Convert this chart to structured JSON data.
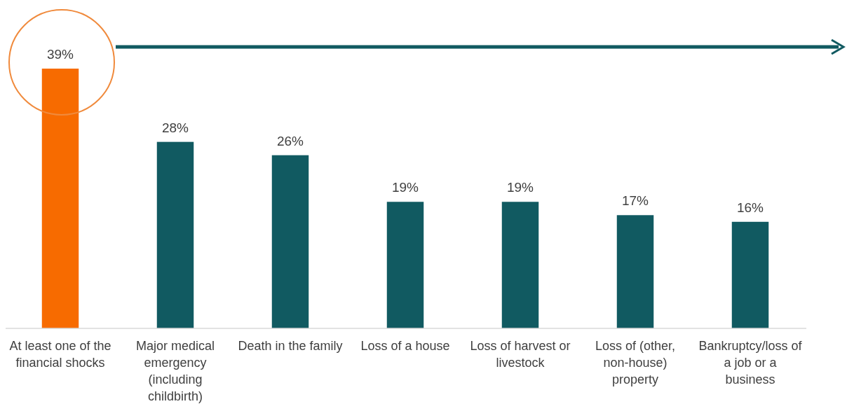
{
  "chart_data": {
    "type": "bar",
    "categories": [
      "At least one of the financial shocks",
      "Major medical emergency (including childbirth)",
      "Death in the family",
      "Loss of a house",
      "Loss of harvest or livestock",
      "Loss of (other, non-house) property",
      "Bankruptcy/loss of a job or a business"
    ],
    "values": [
      39,
      28,
      26,
      19,
      19,
      17,
      16
    ],
    "colors": [
      "#f76b00",
      "#115a61",
      "#115a61",
      "#115a61",
      "#115a61",
      "#115a61",
      "#115a61"
    ],
    "data_labels": true,
    "value_labels": [
      "39%",
      "28%",
      "26%",
      "19%",
      "19%",
      "17%",
      "16%"
    ]
  }
}
